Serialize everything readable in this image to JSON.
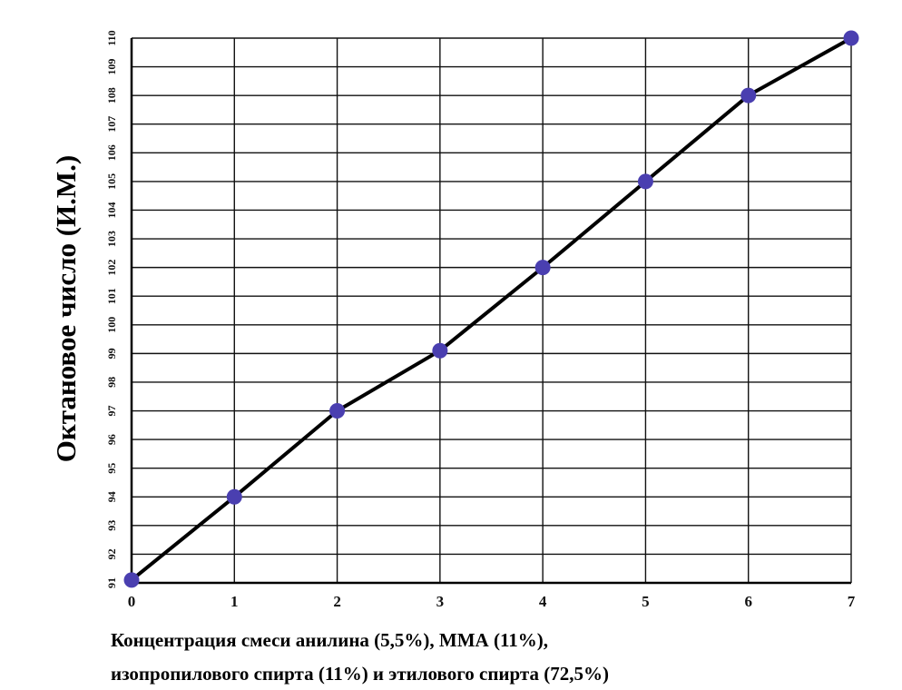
{
  "chart_data": {
    "type": "line",
    "xlabel_lines": [
      "Концентрация смеси анилина (5,5%), ММА (11%),",
      "изопропилового спирта (11%) и этилового спирта (72,5%)"
    ],
    "ylabel": "Октановое число (И.М.)",
    "x": [
      0,
      1,
      2,
      3,
      4,
      5,
      6,
      7
    ],
    "y": [
      91.1,
      94,
      97,
      99.1,
      102,
      105,
      108,
      110
    ],
    "xlim": [
      0,
      7
    ],
    "ylim": [
      91,
      110
    ],
    "xticks": [
      "0",
      "1",
      "2",
      "3",
      "4",
      "5",
      "6",
      "7"
    ],
    "yticks": [
      "91",
      "92",
      "93",
      "94",
      "95",
      "96",
      "97",
      "98",
      "99",
      "100",
      "101",
      "102",
      "103",
      "104",
      "105",
      "106",
      "107",
      "108",
      "109",
      "110"
    ],
    "grid": true,
    "line_color": "#000000",
    "marker_color": "#4a3fb0"
  }
}
